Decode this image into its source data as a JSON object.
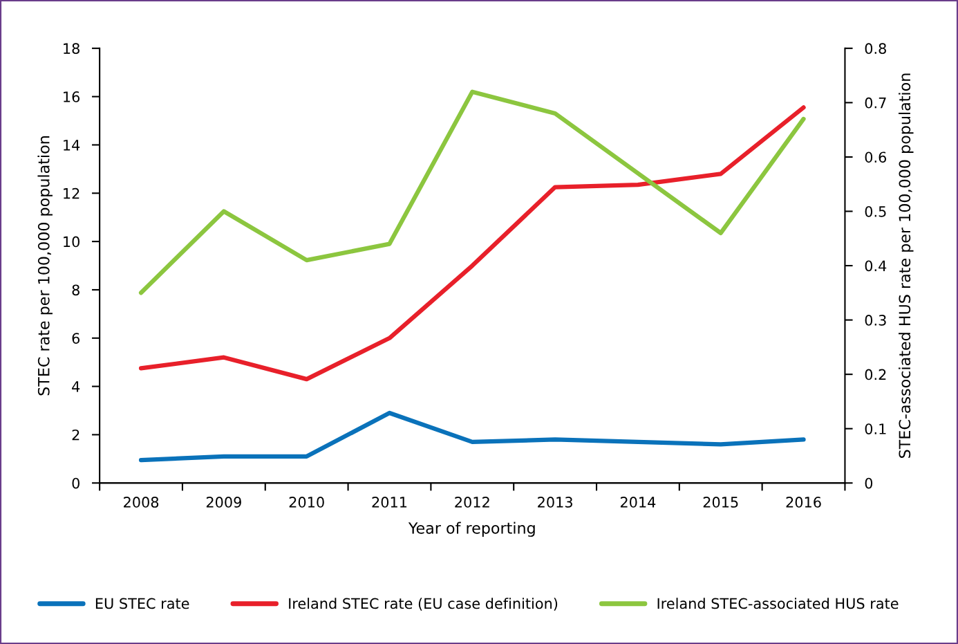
{
  "chart_data": {
    "type": "line",
    "xlabel": "Year of reporting",
    "ylabel": "STEC rate per 100,000 population",
    "y2label": "STEC-associated HUS rate per 100,000 population",
    "categories": [
      "2008",
      "2009",
      "2010",
      "2011",
      "2012",
      "2013",
      "2014",
      "2015",
      "2016"
    ],
    "series": [
      {
        "name": "EU STEC rate",
        "color": "#0a72ba",
        "values": [
          0.95,
          1.1,
          1.1,
          2.9,
          1.7,
          1.8,
          1.7,
          1.6,
          1.8
        ]
      },
      {
        "name": "Ireland STEC rate (EU case definition)",
        "color": "#e8202a",
        "values": [
          4.75,
          5.2,
          4.3,
          6.0,
          9.0,
          12.25,
          12.35,
          12.8,
          15.55
        ]
      },
      {
        "name": "Ireland STEC-associated HUS rate",
        "color": "#8cc63f",
        "axis": "y2",
        "values": [
          0.35,
          0.5,
          0.41,
          0.44,
          0.72,
          0.68,
          0.57,
          0.46,
          0.67
        ]
      }
    ],
    "ylim": [
      0,
      18
    ],
    "yticks": [
      0,
      2,
      4,
      6,
      8,
      10,
      12,
      14,
      16,
      18
    ],
    "y2lim": [
      0,
      0.8
    ],
    "y2ticks": [
      0,
      0.1,
      0.2,
      0.3,
      0.4,
      0.5,
      0.6,
      0.7,
      0.8
    ],
    "grid": false,
    "legend": "bottom",
    "marker": "none",
    "line_style": "solid"
  }
}
